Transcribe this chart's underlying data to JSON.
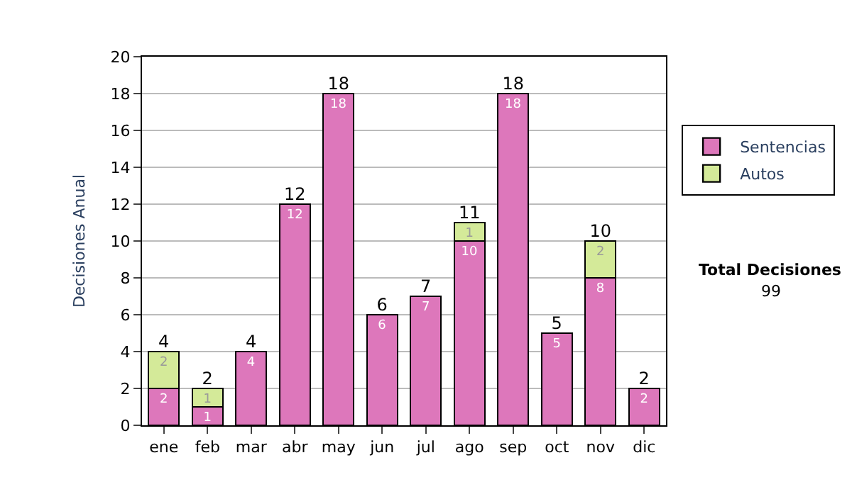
{
  "chart_data": {
    "type": "bar",
    "stacked": true,
    "ylabel": "Decisiones Anual",
    "categories": [
      "ene",
      "feb",
      "mar",
      "abr",
      "may",
      "jun",
      "jul",
      "ago",
      "sep",
      "oct",
      "nov",
      "dic"
    ],
    "series": [
      {
        "name": "Sentencias",
        "color": "#dd77bb",
        "values": [
          2,
          1,
          4,
          12,
          18,
          6,
          7,
          10,
          18,
          5,
          8,
          2
        ]
      },
      {
        "name": "Autos",
        "color": "#d4ea99",
        "values": [
          2,
          1,
          null,
          null,
          null,
          null,
          null,
          1,
          null,
          null,
          2,
          null
        ]
      }
    ],
    "totals": [
      "4",
      "2",
      "4",
      "12",
      "18",
      "6",
      "7",
      "11",
      "18",
      "5",
      "10",
      "2"
    ],
    "data_labels": true,
    "ylim": [
      0,
      20
    ],
    "yticks": [
      0,
      2,
      4,
      6,
      8,
      10,
      12,
      14,
      16,
      18,
      20
    ],
    "grid": "y",
    "legend": "right",
    "annotations": [
      "Total Decisiones",
      "99"
    ]
  }
}
